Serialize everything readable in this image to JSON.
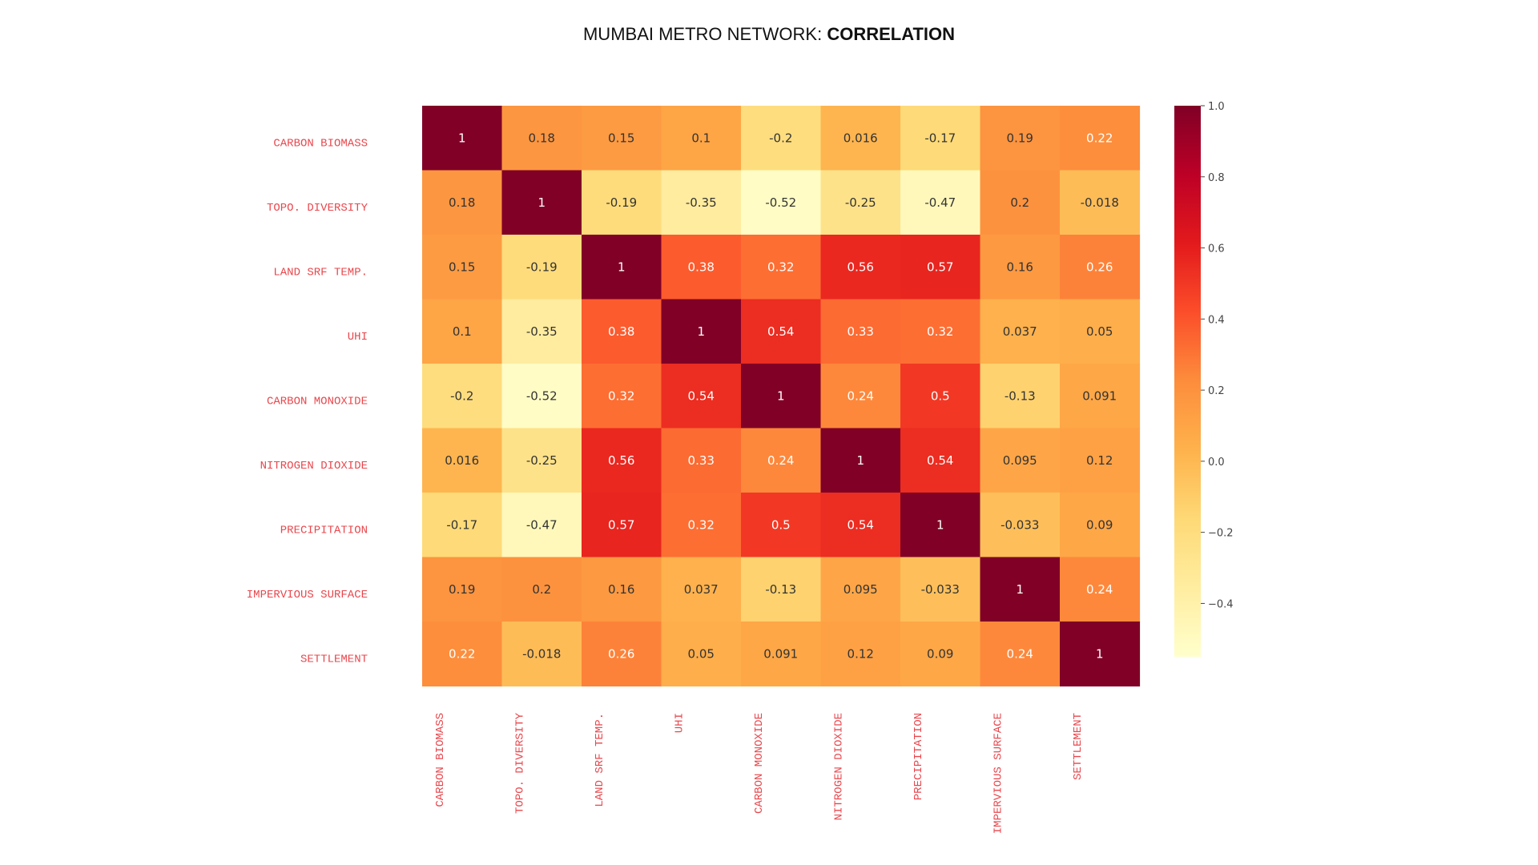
{
  "title": {
    "prefix": "MUMBAI METRO NETWORK: ",
    "emphasis": "CORRELATION"
  },
  "chart_data": {
    "type": "heatmap",
    "title": "MUMBAI METRO NETWORK: CORRELATION",
    "colormap": "YlOrRd",
    "row_labels": [
      "CARBON BIOMASS",
      "TOPO. DIVERSITY",
      "LAND SRF TEMP.",
      "UHI",
      "CARBON MONOXIDE",
      "NITROGEN DIOXIDE",
      "PRECIPITATION",
      "IMPERVIOUS SURFACE",
      "SETTLEMENT"
    ],
    "col_labels": [
      "CARBON BIOMASS",
      "TOPO. DIVERSITY",
      "LAND SRF TEMP.",
      "UHI",
      "CARBON MONOXIDE",
      "NITROGEN DIOXIDE",
      "PRECIPITATION",
      "IMPERVIOUS SURFACE",
      "SETTLEMENT"
    ],
    "matrix": [
      [
        1,
        0.18,
        0.15,
        0.1,
        -0.2,
        0.016,
        -0.17,
        0.19,
        0.22
      ],
      [
        0.18,
        1,
        -0.19,
        -0.35,
        -0.52,
        -0.25,
        -0.47,
        0.2,
        -0.018
      ],
      [
        0.15,
        -0.19,
        1,
        0.38,
        0.32,
        0.56,
        0.57,
        0.16,
        0.26
      ],
      [
        0.1,
        -0.35,
        0.38,
        1,
        0.54,
        0.33,
        0.32,
        0.037,
        0.05
      ],
      [
        -0.2,
        -0.52,
        0.32,
        0.54,
        1,
        0.24,
        0.5,
        -0.13,
        0.091
      ],
      [
        0.016,
        -0.25,
        0.56,
        0.33,
        0.24,
        1,
        0.54,
        0.095,
        0.12
      ],
      [
        -0.17,
        -0.47,
        0.57,
        0.32,
        0.5,
        0.54,
        1,
        -0.033,
        0.09
      ],
      [
        0.19,
        0.2,
        0.16,
        0.037,
        -0.13,
        0.095,
        -0.033,
        1,
        0.24
      ],
      [
        0.22,
        -0.018,
        0.26,
        0.05,
        0.091,
        0.12,
        0.09,
        0.24,
        1
      ]
    ],
    "cell_labels": [
      [
        "1",
        "0.18",
        "0.15",
        "0.1",
        "-0.2",
        "0.016",
        "-0.17",
        "0.19",
        "0.22"
      ],
      [
        "0.18",
        "1",
        "-0.19",
        "-0.35",
        "-0.52",
        "-0.25",
        "-0.47",
        "0.2",
        "-0.018"
      ],
      [
        "0.15",
        "-0.19",
        "1",
        "0.38",
        "0.32",
        "0.56",
        "0.57",
        "0.16",
        "0.26"
      ],
      [
        "0.1",
        "-0.35",
        "0.38",
        "1",
        "0.54",
        "0.33",
        "0.32",
        "0.037",
        "0.05"
      ],
      [
        "-0.2",
        "-0.52",
        "0.32",
        "0.54",
        "1",
        "0.24",
        "0.5",
        "-0.13",
        "0.091"
      ],
      [
        "0.016",
        "-0.25",
        "0.56",
        "0.33",
        "0.24",
        "1",
        "0.54",
        "0.095",
        "0.12"
      ],
      [
        "-0.17",
        "-0.47",
        "0.57",
        "0.32",
        "0.5",
        "0.54",
        "1",
        "-0.033",
        "0.09"
      ],
      [
        "0.19",
        "0.2",
        "0.16",
        "0.037",
        "-0.13",
        "0.095",
        "-0.033",
        "1",
        "0.24"
      ],
      [
        "0.22",
        "-0.018",
        "0.26",
        "0.05",
        "0.091",
        "0.12",
        "0.09",
        "0.24",
        "1"
      ]
    ],
    "colorbar": {
      "vmin": -0.55,
      "vmax": 1.0,
      "ticks": [
        1.0,
        0.8,
        0.6,
        0.4,
        0.2,
        0.0,
        -0.2,
        -0.4
      ],
      "tick_labels": [
        "1.0",
        "0.8",
        "0.6",
        "0.4",
        "0.2",
        "0.0",
        "−0.2",
        "−0.4"
      ]
    },
    "label_color": "#e8474d"
  }
}
